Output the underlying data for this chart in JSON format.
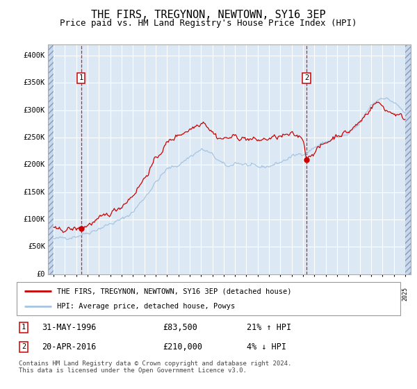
{
  "title": "THE FIRS, TREGYNON, NEWTOWN, SY16 3EP",
  "subtitle": "Price paid vs. HM Land Registry's House Price Index (HPI)",
  "title_fontsize": 11,
  "subtitle_fontsize": 9,
  "background_color": "#dce9f5",
  "grid_color": "#ffffff",
  "red_line_color": "#cc0000",
  "blue_line_color": "#a8c4e0",
  "marker_color": "#cc0000",
  "vline_color": "#cc0000",
  "ann1": {
    "x_year": 1996.42,
    "y": 83500,
    "label": "1",
    "date": "31-MAY-1996",
    "price": "£83,500",
    "hpi_pct": "21% ↑ HPI"
  },
  "ann2": {
    "x_year": 2016.31,
    "y": 210000,
    "label": "2",
    "date": "20-APR-2016",
    "price": "£210,000",
    "hpi_pct": "4% ↓ HPI"
  },
  "ylim": [
    0,
    420000
  ],
  "yticks": [
    0,
    50000,
    100000,
    150000,
    200000,
    250000,
    300000,
    350000,
    400000
  ],
  "ytick_labels": [
    "£0",
    "£50K",
    "£100K",
    "£150K",
    "£200K",
    "£250K",
    "£300K",
    "£350K",
    "£400K"
  ],
  "xlim_start": 1993.5,
  "xlim_end": 2025.5,
  "data_start": 1994.0,
  "data_end": 2025.0,
  "legend_red": "THE FIRS, TREGYNON, NEWTOWN, SY16 3EP (detached house)",
  "legend_blue": "HPI: Average price, detached house, Powys",
  "footer": "Contains HM Land Registry data © Crown copyright and database right 2024.\nThis data is licensed under the Open Government Licence v3.0."
}
